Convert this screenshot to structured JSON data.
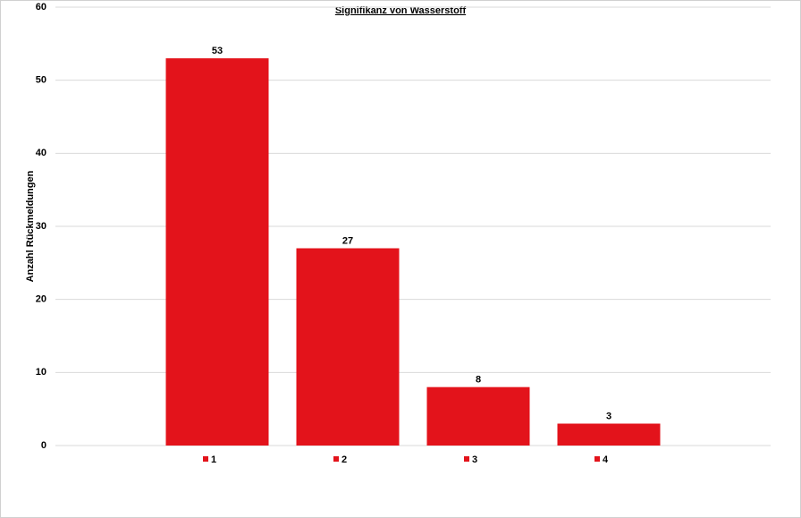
{
  "chart_data": {
    "type": "bar",
    "title": "Signifikanz von Wasserstoff",
    "y_label": "Anzahl Rückmeldungen",
    "categories": [
      "1",
      "2",
      "3",
      "4"
    ],
    "values": [
      53,
      27,
      8,
      3
    ],
    "color": "#e3131b",
    "ylim": [
      0,
      60
    ],
    "yticks": [
      0,
      10,
      20,
      30,
      40,
      50,
      60
    ],
    "grid": true
  }
}
